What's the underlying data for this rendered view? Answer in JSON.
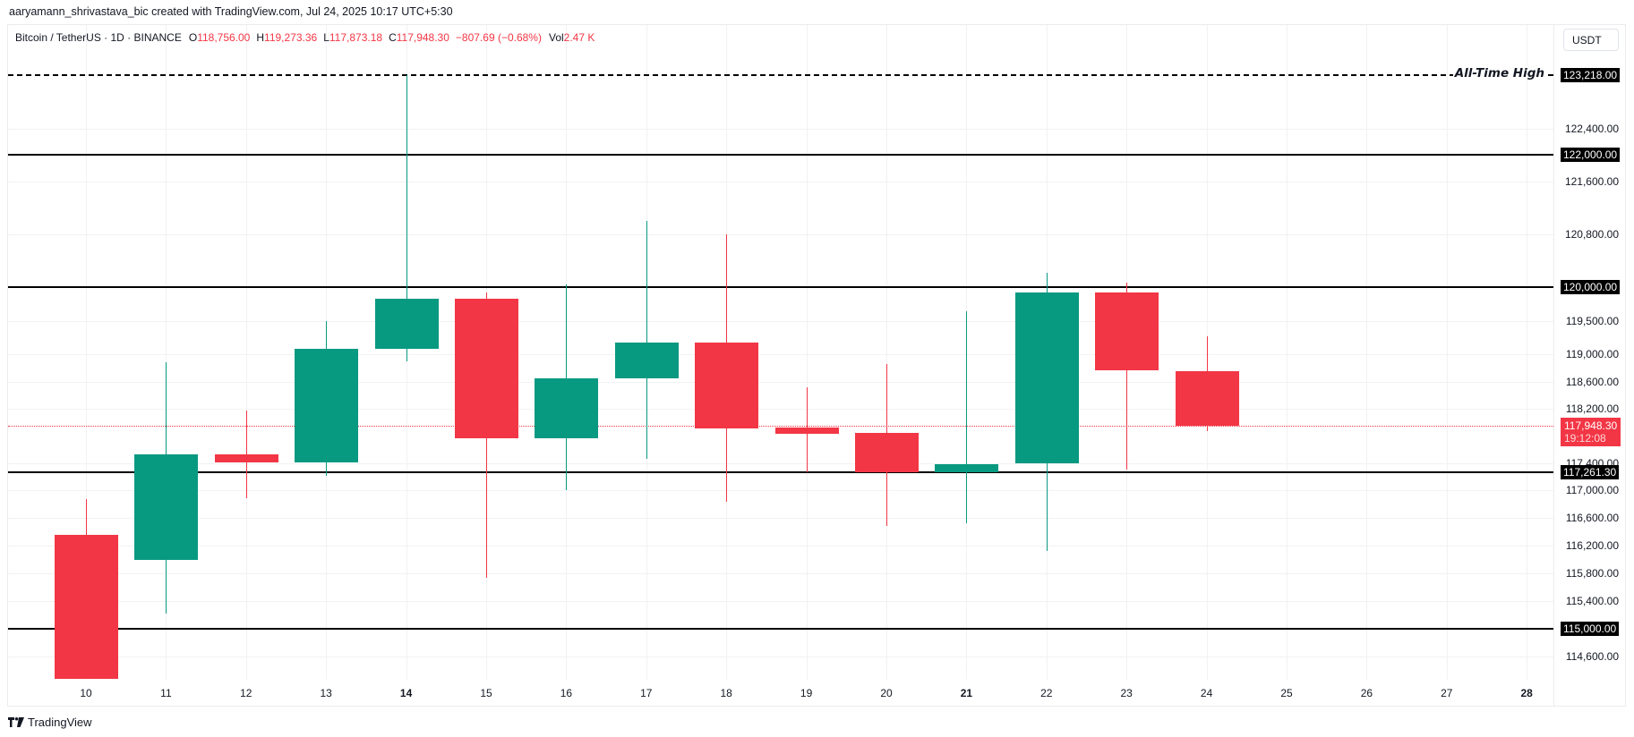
{
  "header": {
    "credit": "aaryamann_shrivastava_bic created with TradingView.com, Jul 24, 2025 10:17 UTC+5:30"
  },
  "legend": {
    "symbol": "Bitcoin / TetherUS · 1D · BINANCE",
    "open_label": "O",
    "open": "118,756.00",
    "high_label": "H",
    "high": "119,273.36",
    "low_label": "L",
    "low": "117,873.18",
    "close_label": "C",
    "close": "117,948.30",
    "change": "−807.69 (−0.68%)",
    "vol_label": "Vol",
    "vol": "2.47 K"
  },
  "price_axis": {
    "currency": "USDT",
    "ticks": [
      "122,400.00",
      "121,600.00",
      "120,800.00",
      "119,500.00",
      "119,000.00",
      "118,600.00",
      "118,200.00",
      "117,400.00",
      "117,000.00",
      "116,600.00",
      "116,200.00",
      "115,800.00",
      "115,400.00",
      "114,600.00"
    ],
    "tick_values": [
      122400,
      121600,
      120800,
      119500,
      119000,
      118600,
      118200,
      117400,
      117000,
      116600,
      116200,
      115800,
      115400,
      114600
    ],
    "level_tags": [
      {
        "label": "123,218.00",
        "value": 123218
      },
      {
        "label": "122,000.00",
        "value": 122000
      },
      {
        "label": "120,000.00",
        "value": 120000
      },
      {
        "label": "117,261.30",
        "value": 117261.3
      },
      {
        "label": "115,000.00",
        "value": 115000
      }
    ],
    "last_price_tag": {
      "price": "117,948.30",
      "countdown": "19:12:08",
      "value": 117948.3
    }
  },
  "annotations": {
    "ath_label": "All-Time High"
  },
  "colors": {
    "up": "#089981",
    "down": "#f23645",
    "level_line": "#000000"
  },
  "footer": {
    "logo_text": "TradingView"
  },
  "chart_data": {
    "type": "candlestick",
    "title": "Bitcoin / TetherUS · 1D · BINANCE",
    "xlabel": "",
    "ylabel": "USDT",
    "x_ticks": [
      "10",
      "11",
      "12",
      "13",
      "14",
      "15",
      "16",
      "17",
      "18",
      "19",
      "20",
      "21",
      "22",
      "23",
      "24",
      "25",
      "26",
      "27",
      "28"
    ],
    "bold_ticks": [
      "14",
      "21",
      "28"
    ],
    "ylim": [
      114300,
      123900
    ],
    "grid": true,
    "candles": [
      {
        "day": "10",
        "open": 116360,
        "high": 116870,
        "low": 114290,
        "close": 114290
      },
      {
        "day": "11",
        "open": 115990,
        "high": 118880,
        "low": 115220,
        "close": 117525
      },
      {
        "day": "12",
        "open": 117525,
        "high": 118170,
        "low": 116890,
        "close": 117405
      },
      {
        "day": "13",
        "open": 117405,
        "high": 119500,
        "low": 117220,
        "close": 119090
      },
      {
        "day": "14",
        "open": 119080,
        "high": 123218,
        "low": 118900,
        "close": 119830
      },
      {
        "day": "15",
        "open": 119830,
        "high": 119930,
        "low": 115730,
        "close": 117760
      },
      {
        "day": "16",
        "open": 117760,
        "high": 120040,
        "low": 117010,
        "close": 118650
      },
      {
        "day": "17",
        "open": 118650,
        "high": 121000,
        "low": 117460,
        "close": 119180
      },
      {
        "day": "18",
        "open": 119180,
        "high": 120800,
        "low": 116830,
        "close": 117910
      },
      {
        "day": "19",
        "open": 117920,
        "high": 118520,
        "low": 117270,
        "close": 117830
      },
      {
        "day": "20",
        "open": 117840,
        "high": 118860,
        "low": 116480,
        "close": 117261
      },
      {
        "day": "21",
        "open": 117261,
        "high": 119640,
        "low": 116520,
        "close": 117380
      },
      {
        "day": "22",
        "open": 117400,
        "high": 120220,
        "low": 116120,
        "close": 119930
      },
      {
        "day": "23",
        "open": 119930,
        "high": 120070,
        "low": 117300,
        "close": 118760
      },
      {
        "day": "24",
        "open": 118756,
        "high": 119273.36,
        "low": 117873.18,
        "close": 117948.3
      }
    ],
    "horizontal_levels": [
      {
        "value": 123218,
        "style": "dashed",
        "label": "All-Time High"
      },
      {
        "value": 122000,
        "style": "solid"
      },
      {
        "value": 120000,
        "style": "solid"
      },
      {
        "value": 117261.3,
        "style": "solid"
      },
      {
        "value": 115000,
        "style": "solid"
      }
    ],
    "last_price": 117948.3
  }
}
